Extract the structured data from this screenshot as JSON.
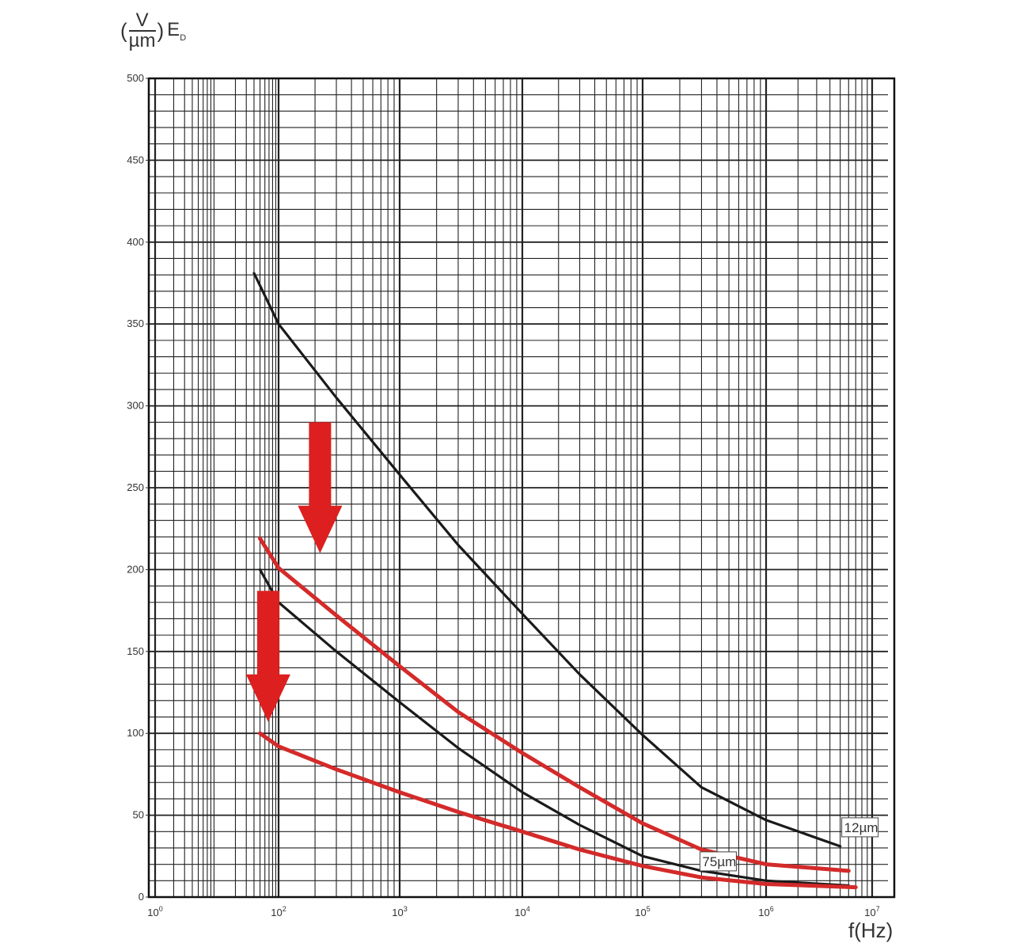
{
  "chart_data": {
    "type": "line",
    "title": "",
    "ylabel": {
      "open_paren": "(",
      "numerator": "V",
      "denominator": "µm",
      "close_paren": ")",
      "symbol": "E",
      "subscript": "D"
    },
    "xlabel": "f(Hz)",
    "x_scale": "log",
    "xlim": [
      1,
      10000000
    ],
    "ylim": [
      0,
      500
    ],
    "y_ticks": [
      {
        "value": 0,
        "label": "0"
      },
      {
        "value": 50,
        "label": "50"
      },
      {
        "value": 100,
        "label": "100"
      },
      {
        "value": 150,
        "label": "150"
      },
      {
        "value": 200,
        "label": "200"
      },
      {
        "value": 250,
        "label": "250"
      },
      {
        "value": 300,
        "label": "300"
      },
      {
        "value": 350,
        "label": "350"
      },
      {
        "value": 400,
        "label": "400"
      },
      {
        "value": 450,
        "label": "450"
      },
      {
        "value": 500,
        "label": "500"
      }
    ],
    "x_ticks": [
      {
        "value": 1,
        "base": "10",
        "exp": "0"
      },
      {
        "value": 100,
        "base": "10",
        "exp": "2"
      },
      {
        "value": 1000,
        "base": "10",
        "exp": "3"
      },
      {
        "value": 10000,
        "base": "10",
        "exp": "4"
      },
      {
        "value": 100000,
        "base": "10",
        "exp": "5"
      },
      {
        "value": 1000000,
        "base": "10",
        "exp": "6"
      },
      {
        "value": 10000000,
        "base": "10",
        "exp": "7"
      }
    ],
    "grid": true,
    "series": [
      {
        "name": "12µm",
        "color": "#1a1a1a",
        "x": [
          40,
          100,
          300,
          1000,
          3000,
          10000,
          30000,
          100000,
          300000,
          1000000,
          5000000
        ],
        "y": [
          381,
          350,
          305,
          258,
          215,
          173,
          136,
          99,
          67,
          47,
          31
        ]
      },
      {
        "name": "75µm",
        "color": "#1a1a1a",
        "x": [
          50,
          100,
          300,
          1000,
          3000,
          10000,
          30000,
          100000,
          300000,
          1000000,
          6000000
        ],
        "y": [
          200,
          180,
          150,
          119,
          91,
          64,
          44,
          25,
          16,
          10,
          7
        ]
      },
      {
        "name": "",
        "color": "#d42a2a",
        "x": [
          50,
          100,
          300,
          1000,
          3000,
          10000,
          30000,
          100000,
          300000,
          1000000,
          6000000
        ],
        "y": [
          219,
          201,
          172,
          141,
          113,
          88,
          67,
          45,
          29,
          20,
          16
        ]
      },
      {
        "name": "",
        "color": "#d42a2a",
        "x": [
          50,
          100,
          300,
          1000,
          3000,
          10000,
          30000,
          100000,
          300000,
          1000000,
          7000000
        ],
        "y": [
          100,
          92,
          78,
          64,
          52,
          40,
          29,
          19,
          12,
          8,
          6
        ]
      }
    ],
    "series_labels": [
      {
        "series": "12µm",
        "at_x": 5000000
      },
      {
        "series": "75µm",
        "at_x": 300000
      }
    ],
    "annotations": [
      {
        "type": "arrow-down",
        "color": "#dd1f1f",
        "at_x": 220,
        "y_from": 290,
        "y_to": 210
      },
      {
        "type": "arrow-down",
        "color": "#dd1f1f",
        "at_x": 68,
        "y_from": 187,
        "y_to": 107
      }
    ]
  }
}
